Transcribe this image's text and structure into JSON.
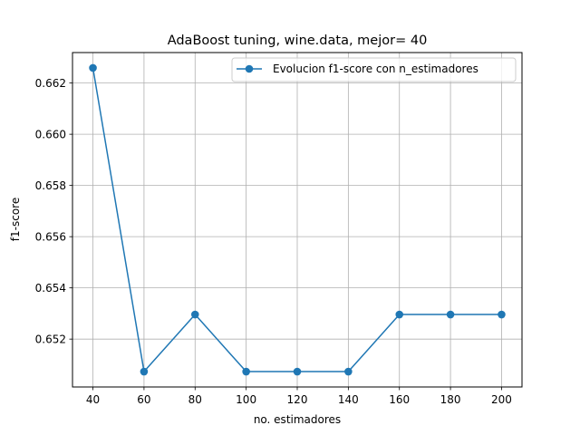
{
  "chart_data": {
    "type": "line",
    "title": "AdaBoost tuning, wine.data, mejor= 40",
    "xlabel": "no. estimadores",
    "ylabel": "f1-score",
    "x": [
      40,
      60,
      80,
      100,
      120,
      140,
      160,
      180,
      200
    ],
    "series": [
      {
        "name": "Evolucion f1-score con n_estimadores",
        "values": [
          0.66259,
          0.65073,
          0.65296,
          0.65073,
          0.65073,
          0.65073,
          0.65296,
          0.65296,
          0.65296
        ],
        "color": "#1f77b4",
        "marker": "circle"
      }
    ],
    "xticks": [
      "40",
      "60",
      "80",
      "100",
      "120",
      "140",
      "160",
      "180",
      "200"
    ],
    "yticks": [
      "0.652",
      "0.654",
      "0.656",
      "0.658",
      "0.660",
      "0.662"
    ],
    "xlim": [
      32,
      208
    ],
    "ylim": [
      0.65013,
      0.66319
    ],
    "grid": true,
    "legend_position": "upper right"
  }
}
